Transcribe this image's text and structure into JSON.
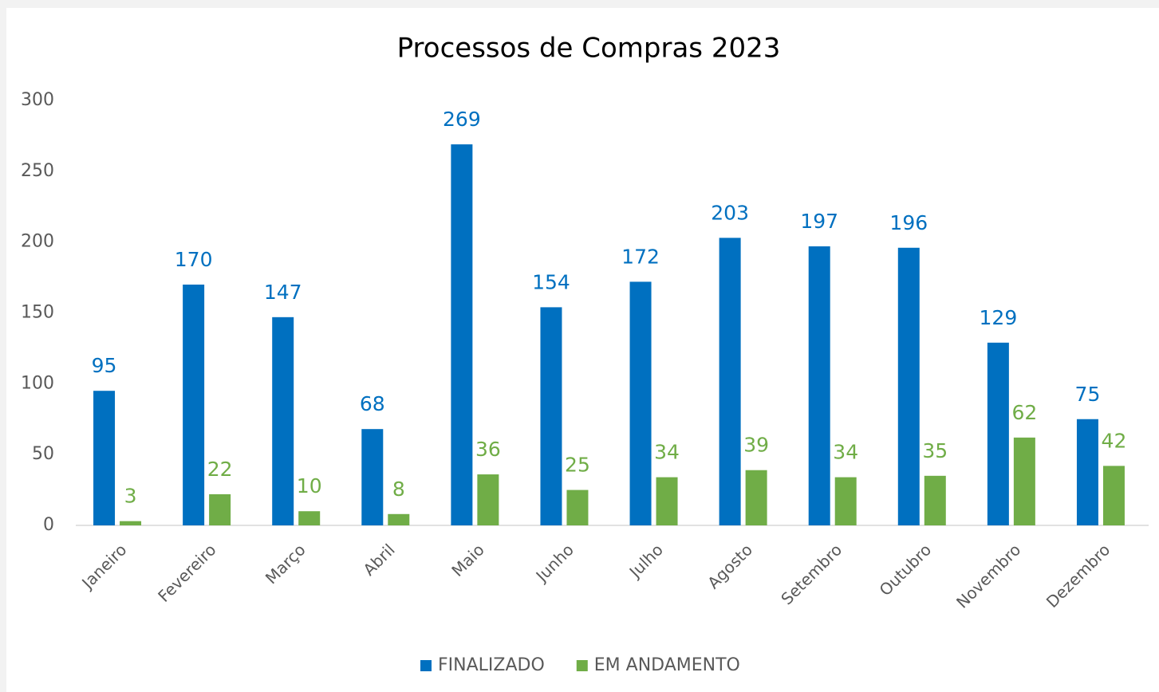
{
  "chart_data": {
    "type": "bar",
    "title": "Processos de Compras 2023",
    "categories": [
      "Janeiro",
      "Fevereiro",
      "Março",
      "Abril",
      "Maio",
      "Junho",
      "Julho",
      "Agosto",
      "Setembro",
      "Outubro",
      "Novembro",
      "Dezembro"
    ],
    "series": [
      {
        "name": "FINALIZADO",
        "color": "#0070c0",
        "values": [
          95,
          170,
          147,
          68,
          269,
          154,
          172,
          203,
          197,
          196,
          129,
          75
        ]
      },
      {
        "name": "EM ANDAMENTO",
        "color": "#70ad47",
        "values": [
          3,
          22,
          10,
          8,
          36,
          25,
          34,
          39,
          34,
          35,
          62,
          42
        ]
      }
    ],
    "ylim": [
      0,
      300
    ],
    "yticks": [
      0,
      50,
      100,
      150,
      200,
      250,
      300
    ],
    "grid": false,
    "legend": "bottom",
    "data_labels": true
  }
}
